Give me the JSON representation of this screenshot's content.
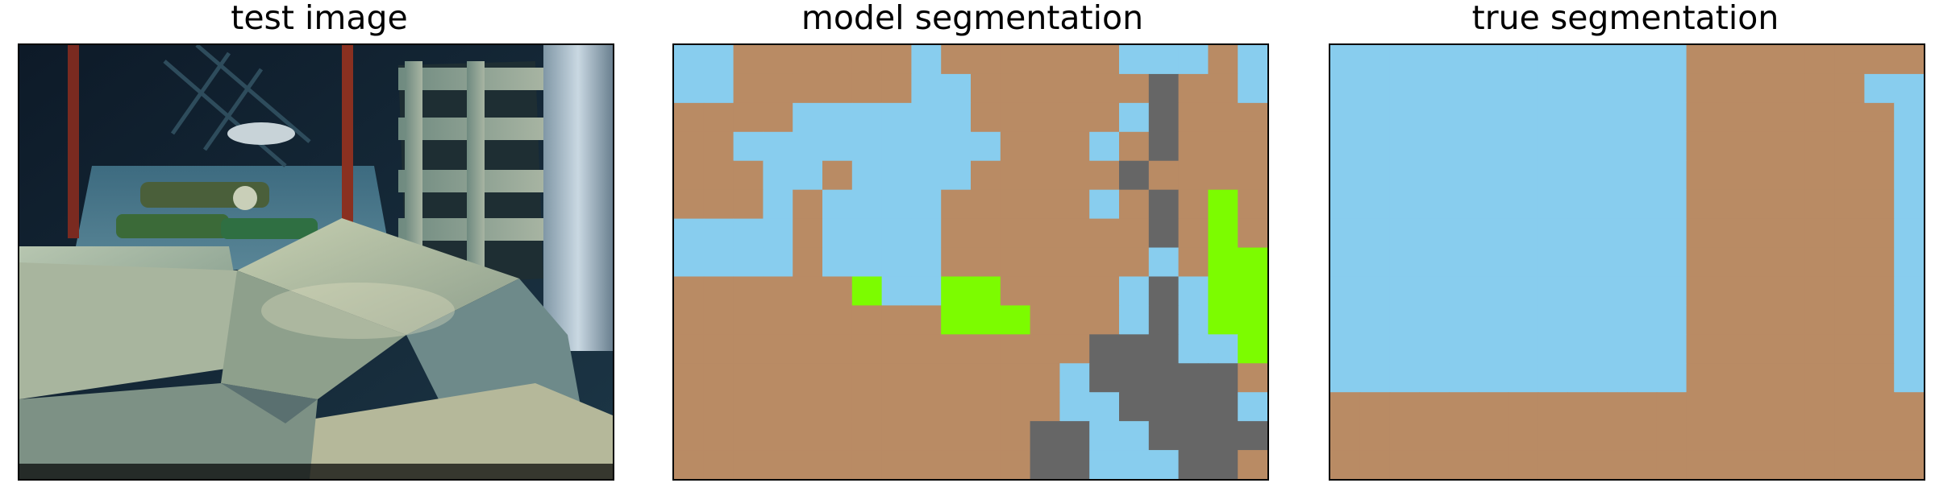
{
  "panels": {
    "test": {
      "title": "test image"
    },
    "model": {
      "title": "model segmentation"
    },
    "truth": {
      "title": "true segmentation"
    }
  },
  "palette": {
    "0": "#88cdee",
    "1": "#b98b64",
    "2": "#666666",
    "3": "#7cfc00"
  },
  "segmentation": {
    "grid_cols": 20,
    "grid_rows": 15,
    "model": [
      "00111111011111100010",
      "00111111001111112110",
      "11110000001111102111",
      "11000000000111012111",
      "11100100001111121111",
      "11101000011111012131",
      "00001000011111112131",
      "00001000011111110133",
      "11111130033111102033",
      "11111111133311102033",
      "11111111111111222003",
      "11111111111110222221",
      "11111111111110022220",
      "11111111111122002222",
      "11111111111122000221"
    ],
    "truth": [
      "00000000000011111111",
      "00000000000011111100",
      "00000000000011111110",
      "00000000000011111110",
      "00000000000011111110",
      "00000000000011111110",
      "00000000000011111110",
      "00000000000011111110",
      "00000000000011111110",
      "00000000000011111110",
      "00000000000011111110",
      "00000000000011111110",
      "11111111111111111111",
      "11111111111111111111",
      "11111111111111111111"
    ]
  }
}
